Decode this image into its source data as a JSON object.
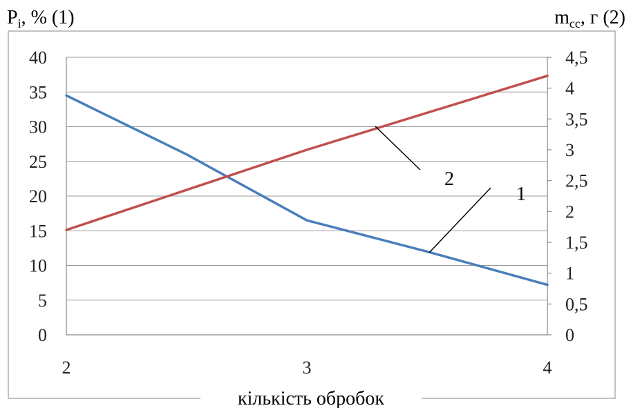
{
  "chart_data": {
    "type": "line",
    "x_categories": [
      2,
      3,
      4
    ],
    "xlabel": "кількість обробок",
    "left_axis": {
      "label_main": "P",
      "label_sub": "i",
      "label_suffix": ", % (1)",
      "ylim": [
        0,
        40
      ],
      "ticks": [
        "0",
        "5",
        "10",
        "15",
        "20",
        "25",
        "30",
        "35",
        "40"
      ]
    },
    "right_axis": {
      "label_main": "m",
      "label_sub": "cc",
      "label_suffix": ", г (2)",
      "ylim": [
        0,
        4.5
      ],
      "ticks": [
        "0",
        "0,5",
        "1",
        "1,5",
        "2",
        "2,5",
        "3",
        "3,5",
        "4",
        "4,5"
      ]
    },
    "series": [
      {
        "label": "1",
        "axis": "left",
        "color": "#4a7ebb",
        "points": [
          [
            2,
            34.5
          ],
          [
            2.5,
            26.0
          ],
          [
            3,
            16.5
          ],
          [
            3.5,
            12.0
          ],
          [
            4,
            7.2
          ]
        ]
      },
      {
        "label": "2",
        "axis": "right",
        "color": "#c0504d",
        "points": [
          [
            2,
            1.7
          ],
          [
            3,
            3.0
          ],
          [
            4,
            4.2
          ]
        ]
      }
    ],
    "grid": "horizontal",
    "legend": "none"
  }
}
